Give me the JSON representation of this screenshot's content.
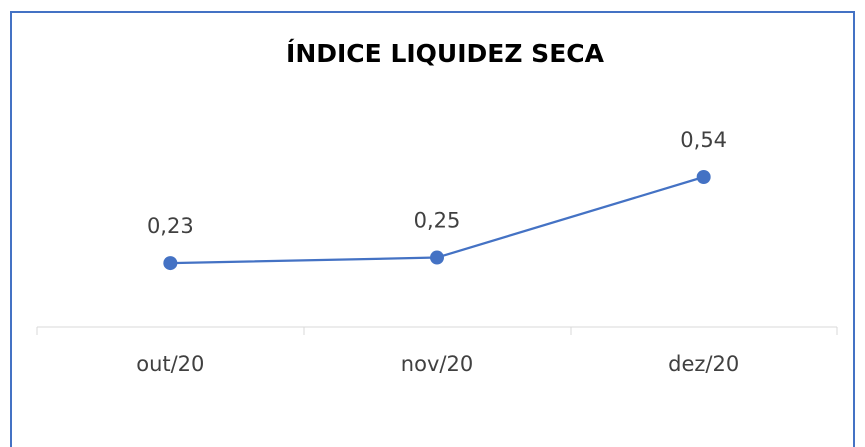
{
  "chart_data": {
    "type": "line",
    "title": "ÍNDICE LIQUIDEZ SECA",
    "categories": [
      "out/20",
      "nov/20",
      "dez/20"
    ],
    "values": [
      0.23,
      0.25,
      0.54
    ],
    "value_labels": [
      "0,23",
      "0,25",
      "0,54"
    ],
    "color": "#4472c4"
  }
}
